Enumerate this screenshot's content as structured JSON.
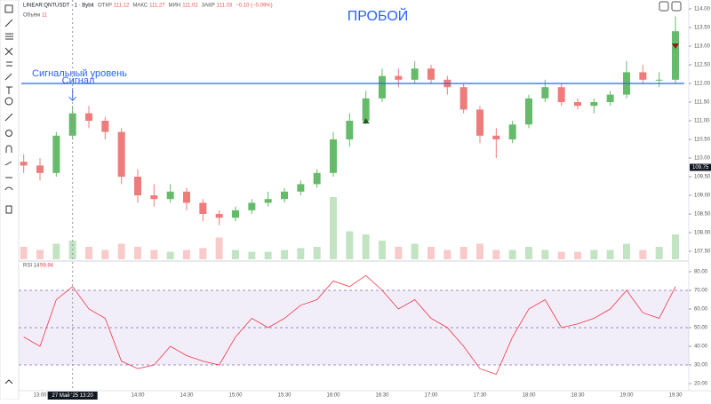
{
  "header": {
    "symbol": "LINEAR:QNTUSDT · 1 · Bybit",
    "quote": [
      {
        "key": "ОТКР",
        "val": "111.12"
      },
      {
        "key": "МАКС",
        "val": "111.27"
      },
      {
        "key": "МИН",
        "val": "111.02"
      },
      {
        "key": "ЗАКР",
        "val": "111.03"
      }
    ],
    "change": "−0.10 (−0.09%)",
    "volume_label": "Объём",
    "volume_value": "11",
    "rsi_label": "RSI 14",
    "rsi_value": "59.94"
  },
  "chart_data": {
    "type": "candlestick",
    "title": "ПРОБОЙ",
    "x": [
      "12:50",
      "13:00",
      "13:10",
      "13:20",
      "13:30",
      "13:40",
      "13:50",
      "14:00",
      "14:10",
      "14:20",
      "14:30",
      "14:40",
      "14:50",
      "15:00",
      "15:10",
      "15:20",
      "15:30",
      "15:40",
      "15:50",
      "16:00",
      "16:10",
      "16:20",
      "16:30",
      "16:40",
      "16:50",
      "17:00",
      "17:10",
      "17:20",
      "17:30",
      "17:40",
      "17:50",
      "18:00",
      "18:10",
      "18:20",
      "18:30",
      "18:40",
      "18:50",
      "19:00",
      "19:10",
      "19:20",
      "19:30"
    ],
    "ohlc": [
      [
        109.9,
        110.1,
        109.6,
        109.8
      ],
      [
        109.8,
        110.0,
        109.4,
        109.6
      ],
      [
        109.6,
        110.7,
        109.5,
        110.6
      ],
      [
        110.6,
        111.4,
        110.5,
        111.2
      ],
      [
        111.2,
        111.4,
        110.8,
        111.0
      ],
      [
        111.0,
        111.1,
        110.5,
        110.7
      ],
      [
        110.7,
        110.8,
        109.3,
        109.5
      ],
      [
        109.5,
        109.7,
        108.8,
        109.0
      ],
      [
        109.0,
        109.3,
        108.7,
        108.9
      ],
      [
        108.9,
        109.3,
        108.8,
        109.1
      ],
      [
        109.1,
        109.2,
        108.6,
        108.8
      ],
      [
        108.8,
        108.9,
        108.3,
        108.5
      ],
      [
        108.5,
        108.6,
        108.2,
        108.4
      ],
      [
        108.4,
        108.7,
        108.3,
        108.6
      ],
      [
        108.6,
        108.9,
        108.5,
        108.8
      ],
      [
        108.8,
        109.1,
        108.7,
        108.9
      ],
      [
        108.9,
        109.2,
        108.8,
        109.1
      ],
      [
        109.1,
        109.4,
        109.0,
        109.3
      ],
      [
        109.3,
        109.7,
        109.2,
        109.6
      ],
      [
        109.6,
        110.7,
        109.5,
        110.5
      ],
      [
        110.5,
        111.2,
        110.3,
        111.0
      ],
      [
        111.0,
        111.8,
        110.9,
        111.6
      ],
      [
        111.6,
        112.4,
        111.5,
        112.2
      ],
      [
        112.2,
        112.4,
        111.9,
        112.1
      ],
      [
        112.1,
        112.6,
        112.0,
        112.4
      ],
      [
        112.4,
        112.5,
        112.0,
        112.1
      ],
      [
        112.1,
        112.2,
        111.7,
        111.9
      ],
      [
        111.9,
        112.0,
        111.2,
        111.3
      ],
      [
        111.3,
        111.4,
        110.4,
        110.6
      ],
      [
        110.6,
        110.8,
        110.0,
        110.5
      ],
      [
        110.5,
        111.0,
        110.4,
        110.9
      ],
      [
        110.9,
        111.7,
        110.8,
        111.6
      ],
      [
        111.6,
        112.1,
        111.5,
        111.9
      ],
      [
        111.9,
        112.0,
        111.4,
        111.5
      ],
      [
        111.5,
        111.6,
        111.3,
        111.4
      ],
      [
        111.4,
        111.6,
        111.2,
        111.5
      ],
      [
        111.5,
        111.8,
        111.4,
        111.7
      ],
      [
        111.7,
        112.6,
        111.6,
        112.3
      ],
      [
        112.3,
        112.5,
        112.0,
        112.1
      ],
      [
        112.1,
        112.3,
        111.9,
        112.1
      ],
      [
        112.1,
        113.8,
        112.0,
        113.4
      ]
    ],
    "volume": [
      20,
      15,
      25,
      30,
      20,
      15,
      25,
      20,
      15,
      12,
      15,
      18,
      35,
      15,
      12,
      12,
      15,
      18,
      20,
      100,
      45,
      40,
      30,
      20,
      25,
      20,
      15,
      20,
      25,
      15,
      15,
      20,
      15,
      12,
      12,
      15,
      15,
      25,
      15,
      20,
      40
    ],
    "rsi": [
      45,
      40,
      65,
      72,
      60,
      55,
      32,
      28,
      30,
      40,
      35,
      32,
      30,
      45,
      55,
      50,
      55,
      62,
      65,
      75,
      72,
      78,
      70,
      60,
      65,
      55,
      50,
      40,
      28,
      25,
      45,
      60,
      65,
      50,
      52,
      55,
      60,
      70,
      58,
      55,
      72
    ],
    "rsi_levels": [
      70,
      50,
      30
    ],
    "ylim": [
      107.5,
      114
    ],
    "yticks": [
      {
        "value": 114,
        "label": "114.00"
      },
      {
        "value": 113.5,
        "label": "113.50"
      },
      {
        "value": 113,
        "label": "113.00"
      },
      {
        "value": 112.5,
        "label": "112.50"
      },
      {
        "value": 112,
        "label": "112.00"
      },
      {
        "value": 111.5,
        "label": "111.50"
      },
      {
        "value": 111,
        "label": "111.00"
      },
      {
        "value": 110.5,
        "label": "110.50"
      },
      {
        "value": 110,
        "label": "110.00"
      },
      {
        "value": 109.5,
        "label": "109.50"
      },
      {
        "value": 109,
        "label": "109.00"
      },
      {
        "value": 108.5,
        "label": "108.50"
      },
      {
        "value": 108,
        "label": "108.00"
      },
      {
        "value": 107.5,
        "label": "107.50"
      }
    ],
    "y2lim": [
      20,
      80
    ],
    "y2ticks": [
      {
        "value": 80,
        "label": "80.00"
      },
      {
        "value": 70,
        "label": "70.00"
      },
      {
        "value": 60,
        "label": "60.00"
      },
      {
        "value": 50,
        "label": "50.00"
      },
      {
        "value": 40,
        "label": "40.00"
      },
      {
        "value": 30,
        "label": "30.00"
      },
      {
        "value": 20,
        "label": "20.00"
      }
    ],
    "xticks": [
      "13:00",
      "14:00",
      "14:30",
      "15:00",
      "15:30",
      "16:00",
      "16:30",
      "17:00",
      "17:30",
      "18:00",
      "18:30",
      "19:00",
      "19:30"
    ],
    "signal_level": {
      "label": "Сигнальный уровень",
      "value": 112
    },
    "signal": {
      "label": "Сигнал",
      "x": "13:20",
      "value": 111.4
    },
    "markers": [
      {
        "x": "16:20",
        "value": 111.0,
        "dir": "up",
        "color": "#1b5e20"
      },
      {
        "x": "19:30",
        "value": 113.0,
        "dir": "down",
        "color": "#8b1a1a"
      }
    ],
    "crosshair": {
      "x": "13:20",
      "time_label": "27 Май '25   13:20",
      "price_label": "109.75",
      "price": 109.75
    },
    "up_color": "#66bb6a",
    "down_color": "#ef7b7b",
    "rsi_color": "#f23645",
    "level_color": "#2962ff"
  }
}
